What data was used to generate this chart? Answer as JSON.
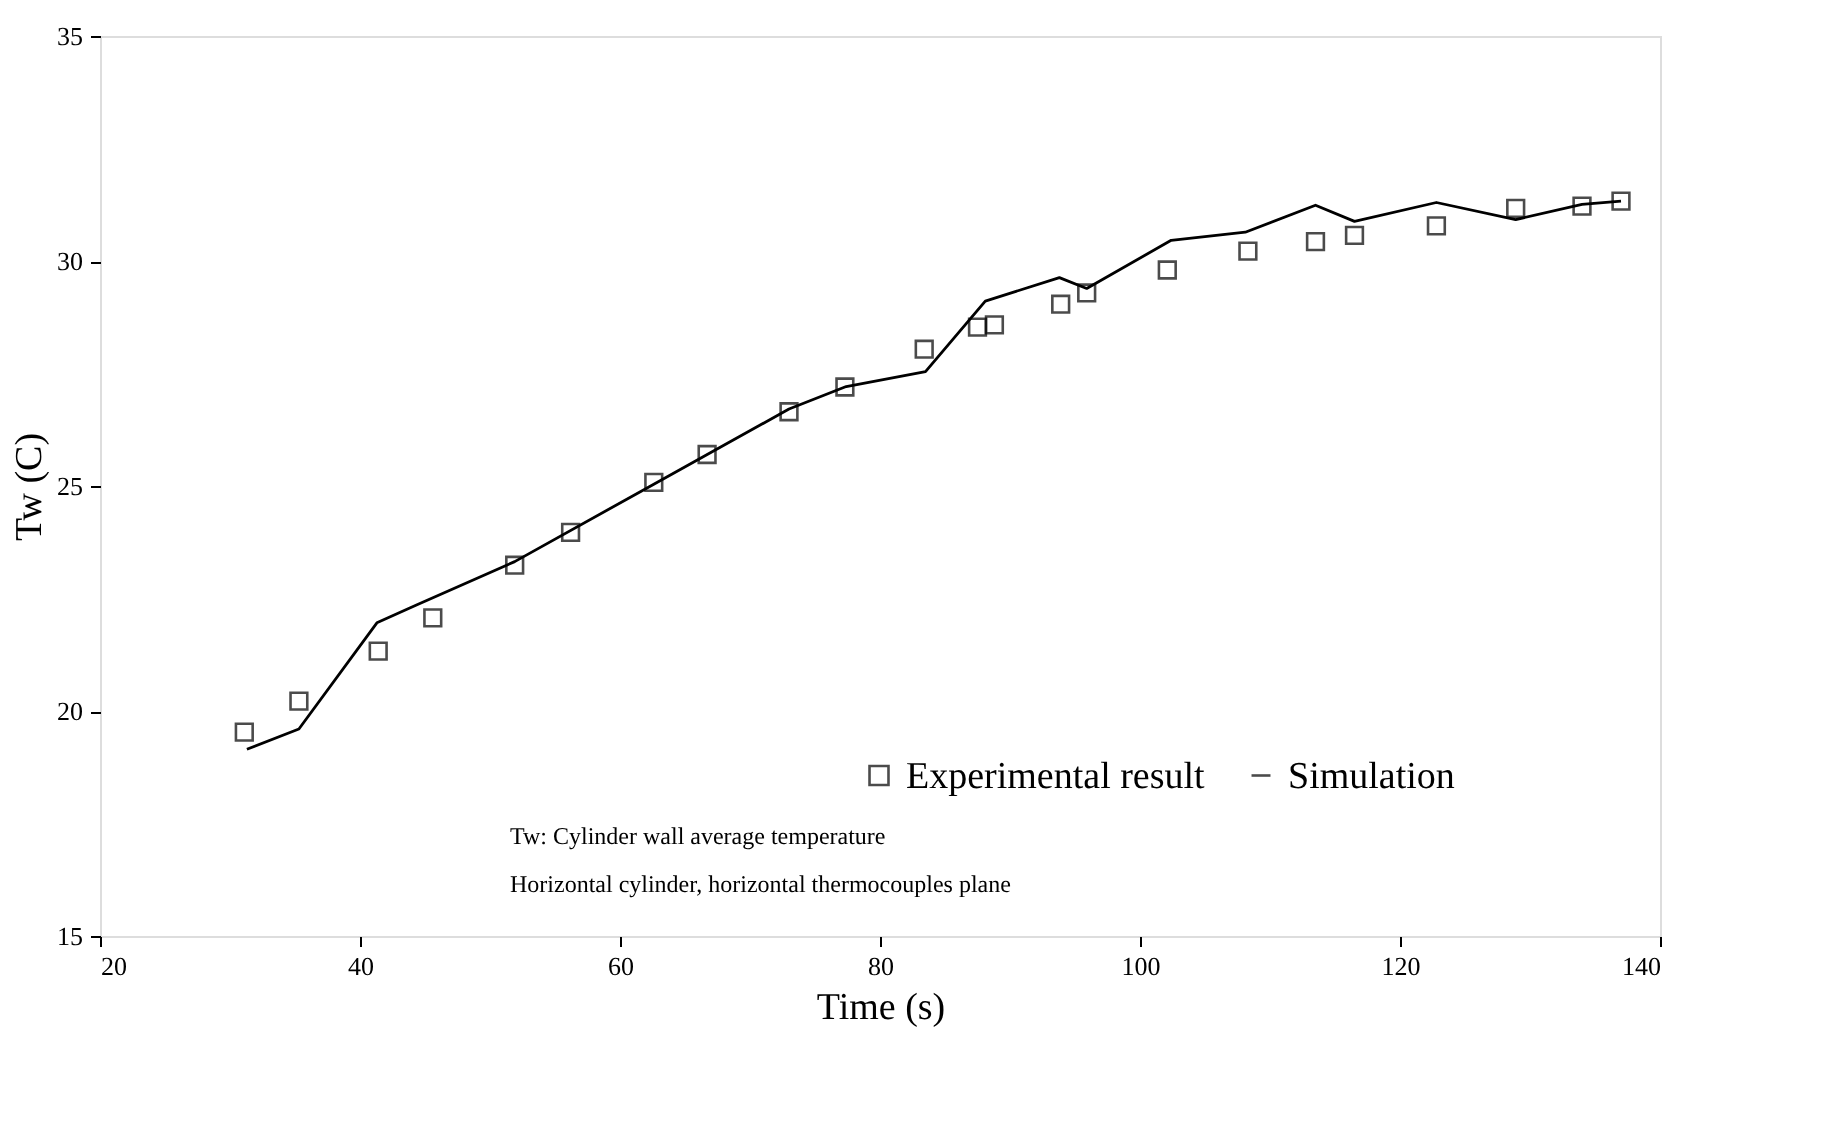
{
  "chart_data": {
    "type": "scatter",
    "xlabel": "Time (s)",
    "ylabel": "Tw (C)",
    "xlim": [
      20,
      140
    ],
    "ylim": [
      15,
      35
    ],
    "xticks": [
      20,
      40,
      60,
      80,
      100,
      120,
      140
    ],
    "yticks": [
      15,
      20,
      25,
      30,
      35
    ],
    "grid": false,
    "legend": "bottom right",
    "annotations": [
      "Tw: Cylinder wall average temperature",
      "Horizontal cylinder, horizontal thermocouples plane"
    ],
    "series": [
      {
        "name": "Experimental result",
        "marker": "square",
        "color": "#000000",
        "x": [
          31.1,
          35.3,
          41.4,
          45.6,
          51.9,
          56.2,
          62.6,
          66.7,
          73.0,
          77.3,
          83.4,
          87.5,
          88.8,
          93.9,
          95.9,
          102.1,
          108.3,
          113.5,
          116.5,
          122.8,
          128.9,
          134.0,
          137.0
        ],
        "values": [
          19.53,
          20.22,
          21.33,
          22.07,
          23.24,
          23.97,
          25.08,
          25.7,
          26.65,
          27.2,
          28.04,
          28.53,
          28.58,
          29.04,
          29.29,
          29.8,
          30.22,
          30.43,
          30.57,
          30.78,
          31.17,
          31.22,
          31.33
        ]
      },
      {
        "name": "Simulation",
        "type": "line",
        "marker": "none",
        "color": "#000000",
        "line_style": "solid",
        "x": [
          31.3,
          35.3,
          41.3,
          44.3,
          51.9,
          62.6,
          73.0,
          77.4,
          83.5,
          88.1,
          93.8,
          95.9,
          102.4,
          108.1,
          113.5,
          116.5,
          122.8,
          128.9,
          134.0,
          137.0
        ],
        "values": [
          19.15,
          19.6,
          21.96,
          22.35,
          23.32,
          25.04,
          26.71,
          27.21,
          27.54,
          29.11,
          29.63,
          29.39,
          30.46,
          30.64,
          31.24,
          30.88,
          31.3,
          30.92,
          31.26,
          31.33
        ]
      }
    ]
  }
}
